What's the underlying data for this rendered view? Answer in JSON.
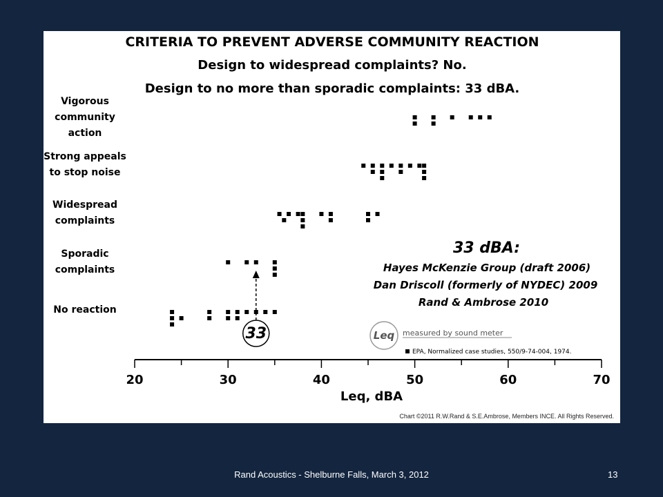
{
  "chart_data": {
    "type": "scatter",
    "title_lines": [
      "CRITERIA TO PREVENT ADVERSE COMMUNITY REACTION",
      "Design to widespread  complaints? No.",
      "Design to no more than sporadic complaints: 33 dBA."
    ],
    "xlabel": "Leq, dBA",
    "xlim": [
      20,
      70
    ],
    "x_ticks": [
      20,
      30,
      40,
      50,
      60,
      70
    ],
    "categories": [
      {
        "key": "vigorous",
        "label_lines": [
          "Vigorous",
          "community",
          "action"
        ]
      },
      {
        "key": "strong",
        "label_lines": [
          "Strong appeals",
          "to stop noise"
        ]
      },
      {
        "key": "widespread",
        "label_lines": [
          "Widespread",
          "complaints"
        ]
      },
      {
        "key": "sporadic",
        "label_lines": [
          "Sporadic",
          "complaints"
        ]
      },
      {
        "key": "none",
        "label_lines": [
          "No reaction"
        ]
      }
    ],
    "points": {
      "vigorous": [
        [
          50,
          0
        ],
        [
          50,
          1
        ],
        [
          52,
          0
        ],
        [
          52,
          1
        ],
        [
          54,
          0
        ],
        [
          56,
          0
        ],
        [
          57,
          0
        ],
        [
          58,
          0
        ]
      ],
      "strong": [
        [
          44.5,
          0
        ],
        [
          45.5,
          0
        ],
        [
          45.5,
          1
        ],
        [
          46.5,
          0
        ],
        [
          46.5,
          1
        ],
        [
          46.5,
          2
        ],
        [
          47.5,
          0
        ],
        [
          48.5,
          0
        ],
        [
          48.5,
          1
        ],
        [
          49.5,
          0
        ],
        [
          50.5,
          0
        ],
        [
          51,
          0
        ],
        [
          51,
          1
        ],
        [
          51,
          2
        ]
      ],
      "widespread": [
        [
          35.5,
          0
        ],
        [
          36.5,
          0
        ],
        [
          36,
          1
        ],
        [
          37.5,
          0
        ],
        [
          38,
          0
        ],
        [
          38,
          1
        ],
        [
          38,
          2
        ],
        [
          40,
          0
        ],
        [
          41,
          0
        ],
        [
          41,
          1
        ],
        [
          45,
          0
        ],
        [
          45,
          1
        ],
        [
          46,
          0
        ]
      ],
      "sporadic": [
        [
          30,
          0
        ],
        [
          32,
          0
        ],
        [
          33,
          0
        ],
        [
          35,
          0
        ],
        [
          35,
          1
        ],
        [
          35,
          2
        ]
      ],
      "none": [
        [
          24,
          0
        ],
        [
          24,
          1
        ],
        [
          24,
          2
        ],
        [
          25,
          1
        ],
        [
          28,
          0
        ],
        [
          28,
          1
        ],
        [
          30,
          0
        ],
        [
          30,
          1
        ],
        [
          31,
          0
        ],
        [
          31,
          1
        ],
        [
          32,
          0
        ],
        [
          33,
          0
        ],
        [
          34,
          0
        ],
        [
          35,
          0
        ]
      ]
    },
    "marker": "square",
    "marker_color": "#000000",
    "callout": {
      "value": "33",
      "x": 33
    },
    "annotation": {
      "heading": "33 dBA:",
      "lines": [
        "Hayes McKenzie Group (draft 2006)",
        "Dan Driscoll (formerly of NYDEC) 2009",
        "Rand & Ambrose 2010"
      ]
    },
    "leq_badge": {
      "symbol": "Leq",
      "text": "measured by sound meter"
    },
    "legend": {
      "text": "EPA, Normalized case studies, 550/9-74-004, 1974."
    },
    "copyright": "Chart ©2011 R.W.Rand & S.E.Ambrose, Members INCE.  All Rights Reserved."
  },
  "footer": {
    "text": "Rand Acoustics - Shelburne Falls, March 3, 2012",
    "page_number": "13"
  },
  "colors": {
    "background": "#13253f",
    "panel": "#ffffff",
    "ink": "#000000"
  }
}
